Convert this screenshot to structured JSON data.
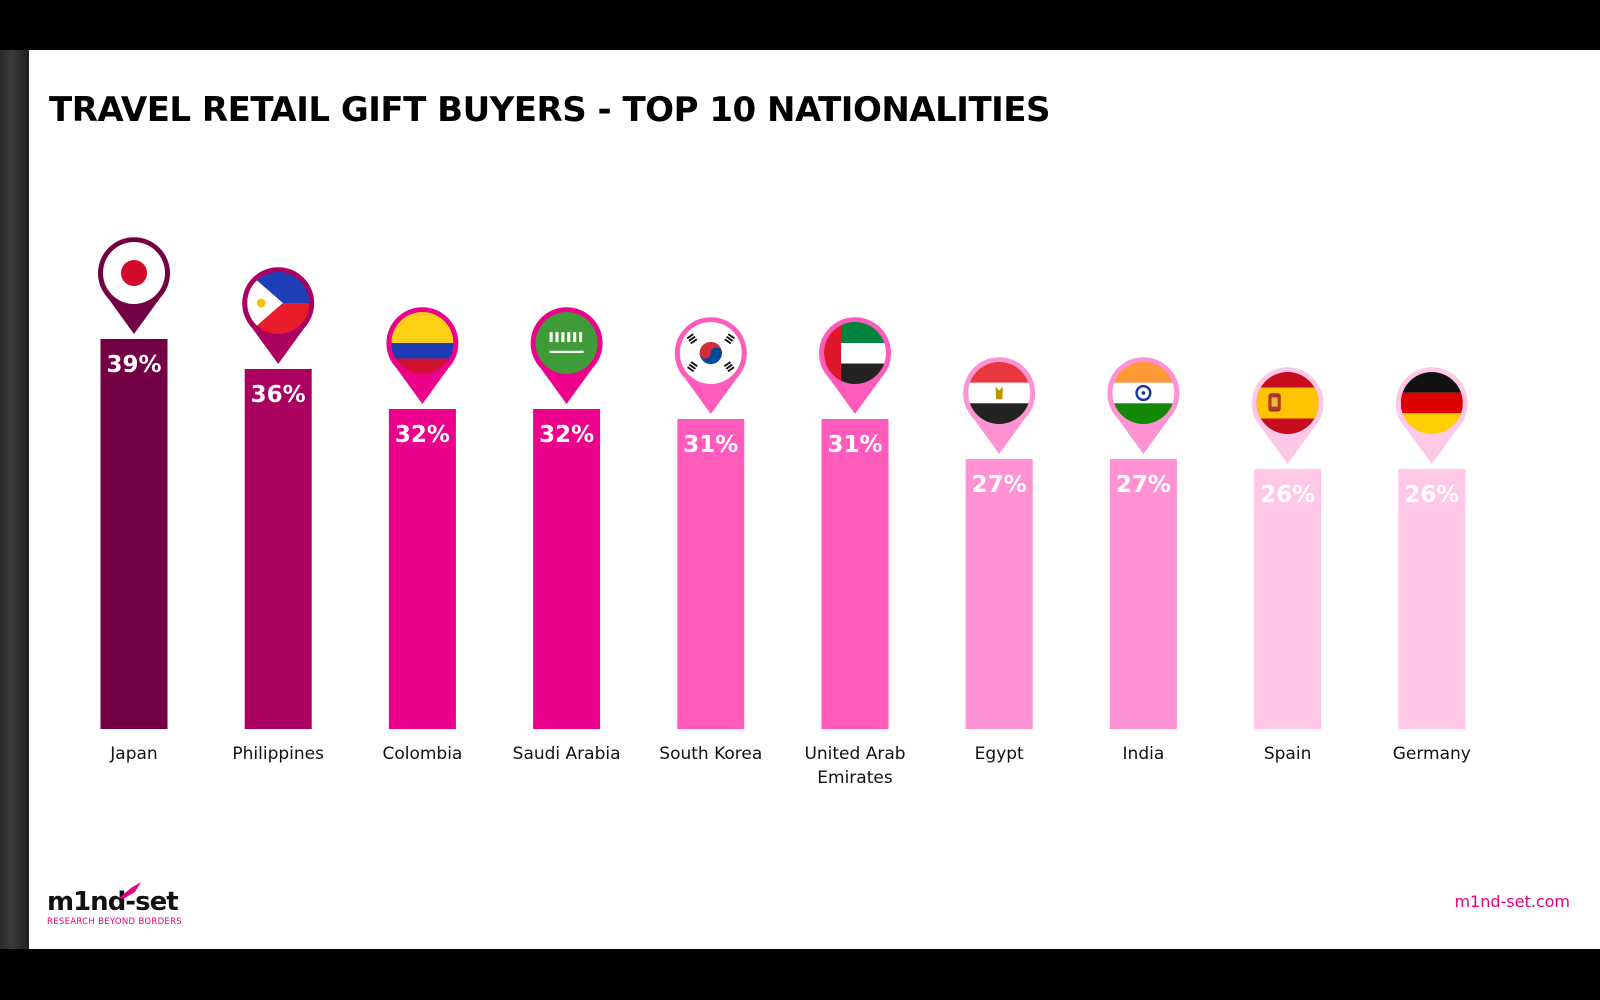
{
  "page": {
    "title": "TRAVEL RETAIL GIFT BUYERS - TOP 10 NATIONALITIES"
  },
  "footer": {
    "logo_text": "m1nd-set",
    "logo_tagline": "RESEARCH BEYOND BORDERS",
    "site_url": "m1nd-set.com"
  },
  "chart_data": {
    "type": "bar",
    "title": "TRAVEL RETAIL GIFT BUYERS - TOP 10 NATIONALITIES",
    "xlabel": "",
    "ylabel": "",
    "ylim": [
      0,
      100
    ],
    "unit": "%",
    "grid": false,
    "legend": "none",
    "categories": [
      [
        "Japan"
      ],
      [
        "Philippines"
      ],
      [
        "Colombia"
      ],
      [
        "Saudi Arabia"
      ],
      [
        "South Korea"
      ],
      [
        "United Arab",
        "Emirates"
      ],
      [
        "Egypt"
      ],
      [
        "India"
      ],
      [
        "Spain"
      ],
      [
        "Germany"
      ]
    ],
    "values": [
      39,
      36,
      32,
      32,
      31,
      31,
      27,
      27,
      26,
      26
    ],
    "bar_colors": [
      "#730043",
      "#aa005f",
      "#ec008c",
      "#ec008c",
      "#ff5bbd",
      "#ff5bbd",
      "#ff92d3",
      "#ff92d3",
      "#ffc8e8",
      "#ffc8e8"
    ],
    "flag_icons": [
      "japan-flag-icon",
      "philippines-flag-icon",
      "colombia-flag-icon",
      "saudi-arabia-flag-icon",
      "south-korea-flag-icon",
      "uae-flag-icon",
      "egypt-flag-icon",
      "india-flag-icon",
      "spain-flag-icon",
      "germany-flag-icon"
    ],
    "colors": {
      "accent": "#e6007e"
    }
  }
}
